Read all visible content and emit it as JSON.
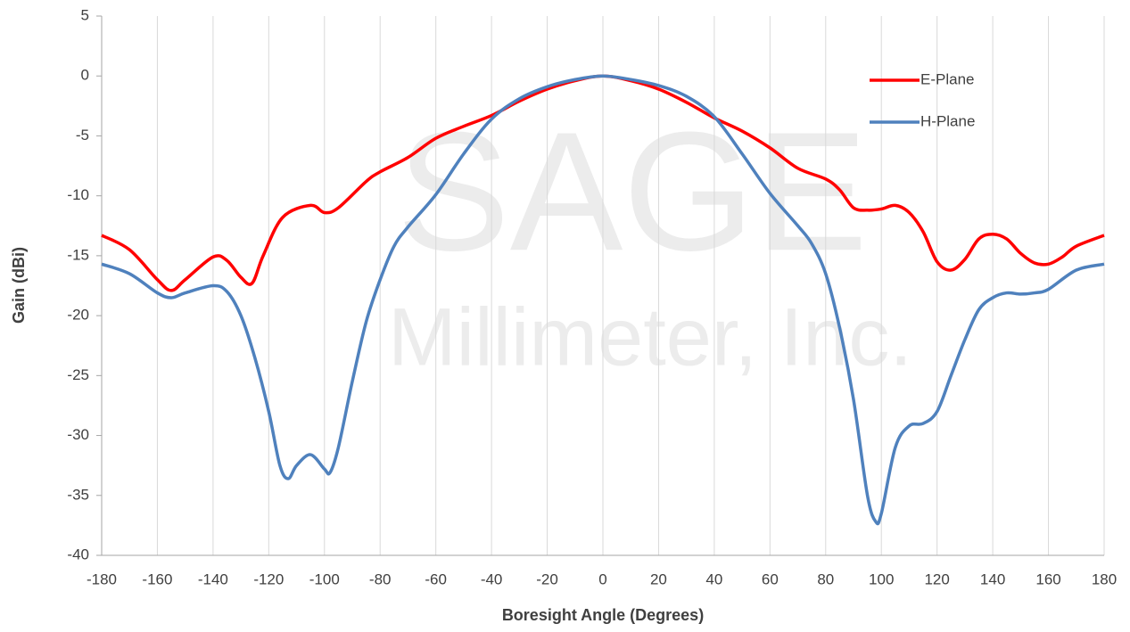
{
  "chart_data": {
    "type": "line",
    "watermark": [
      "SAGE",
      "Millimeter, Inc."
    ],
    "xlabel": "Boresight Angle (Degrees)",
    "ylabel": "Gain (dBi)",
    "xlim": [
      -180,
      180
    ],
    "xticks": [
      -180,
      -160,
      -140,
      -120,
      -100,
      -80,
      -60,
      -40,
      -20,
      0,
      20,
      40,
      60,
      80,
      100,
      120,
      140,
      160,
      180
    ],
    "ylim": [
      -40,
      5
    ],
    "yticks": [
      -40,
      -35,
      -30,
      -25,
      -20,
      -15,
      -10,
      -5,
      0,
      5
    ],
    "grid": "x",
    "legend": "upper right",
    "series": [
      {
        "name": "E-Plane",
        "color": "#ff0000",
        "x": [
          -180,
          -170,
          -160,
          -155,
          -150,
          -140,
          -135,
          -130,
          -126,
          -122,
          -115,
          -105,
          -100,
          -95,
          -85,
          -80,
          -70,
          -60,
          -50,
          -40,
          -30,
          -20,
          -10,
          0,
          10,
          20,
          30,
          40,
          50,
          60,
          70,
          80,
          85,
          90,
          95,
          100,
          105,
          110,
          115,
          120,
          125,
          130,
          135,
          140,
          145,
          150,
          155,
          160,
          165,
          170,
          180
        ],
        "values": [
          -13.3,
          -14.5,
          -17,
          -17.9,
          -17,
          -15.1,
          -15.4,
          -16.8,
          -17.3,
          -15,
          -11.8,
          -10.8,
          -11.4,
          -11,
          -8.8,
          -8,
          -6.8,
          -5.2,
          -4.2,
          -3.3,
          -2.1,
          -1.1,
          -0.4,
          0,
          -0.4,
          -1.1,
          -2.2,
          -3.5,
          -4.6,
          -6,
          -7.7,
          -8.6,
          -9.5,
          -11,
          -11.2,
          -11.1,
          -10.8,
          -11.4,
          -13,
          -15.5,
          -16.2,
          -15.3,
          -13.6,
          -13.2,
          -13.6,
          -14.8,
          -15.6,
          -15.7,
          -15.1,
          -14.2,
          -13.3
        ]
      },
      {
        "name": "H-Plane",
        "color": "#4f81bd",
        "x": [
          -180,
          -170,
          -160,
          -155,
          -150,
          -140,
          -135,
          -130,
          -125,
          -120,
          -116,
          -113,
          -110,
          -105,
          -100,
          -98,
          -95,
          -90,
          -85,
          -80,
          -75,
          -70,
          -60,
          -50,
          -40,
          -30,
          -20,
          -10,
          0,
          10,
          20,
          30,
          40,
          50,
          60,
          70,
          75,
          80,
          85,
          90,
          95,
          98,
          100,
          105,
          110,
          115,
          120,
          125,
          130,
          135,
          140,
          145,
          150,
          155,
          160,
          170,
          180
        ],
        "values": [
          -15.7,
          -16.5,
          -18.1,
          -18.5,
          -18.1,
          -17.5,
          -18,
          -20,
          -23.5,
          -28,
          -32.5,
          -33.6,
          -32.5,
          -31.6,
          -32.8,
          -33.1,
          -31,
          -25.5,
          -20.5,
          -17,
          -14.2,
          -12.6,
          -9.9,
          -6.5,
          -3.6,
          -1.9,
          -0.9,
          -0.3,
          0,
          -0.3,
          -0.8,
          -1.7,
          -3.4,
          -6.5,
          -9.8,
          -12.5,
          -14,
          -16.5,
          -21,
          -27,
          -35,
          -37.2,
          -36.5,
          -31,
          -29.2,
          -29,
          -28,
          -25,
          -22,
          -19.5,
          -18.5,
          -18.1,
          -18.2,
          -18.1,
          -17.8,
          -16.2,
          -15.7
        ]
      }
    ]
  }
}
